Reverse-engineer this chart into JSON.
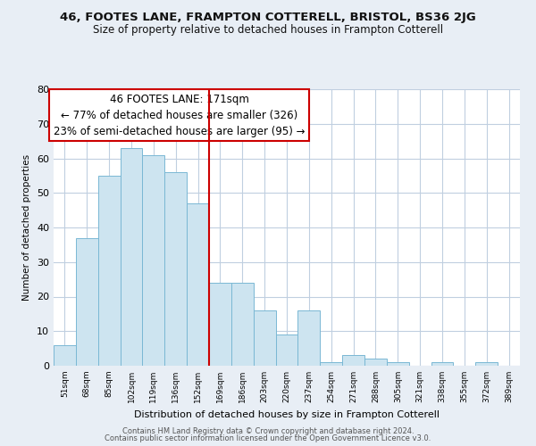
{
  "title": "46, FOOTES LANE, FRAMPTON COTTERELL, BRISTOL, BS36 2JG",
  "subtitle": "Size of property relative to detached houses in Frampton Cotterell",
  "xlabel": "Distribution of detached houses by size in Frampton Cotterell",
  "ylabel": "Number of detached properties",
  "bar_labels": [
    "51sqm",
    "68sqm",
    "85sqm",
    "102sqm",
    "119sqm",
    "136sqm",
    "152sqm",
    "169sqm",
    "186sqm",
    "203sqm",
    "220sqm",
    "237sqm",
    "254sqm",
    "271sqm",
    "288sqm",
    "305sqm",
    "321sqm",
    "338sqm",
    "355sqm",
    "372sqm",
    "389sqm"
  ],
  "bar_values": [
    6,
    37,
    55,
    63,
    61,
    56,
    47,
    24,
    24,
    16,
    9,
    16,
    1,
    3,
    2,
    1,
    0,
    1,
    0,
    1,
    0
  ],
  "bar_color": "#cde4f0",
  "bar_edge_color": "#7ab8d4",
  "vline_x_idx": 7,
  "vline_color": "#cc0000",
  "ylim": [
    0,
    80
  ],
  "yticks": [
    0,
    10,
    20,
    30,
    40,
    50,
    60,
    70,
    80
  ],
  "annotation_title": "46 FOOTES LANE: 171sqm",
  "annotation_line1": "← 77% of detached houses are smaller (326)",
  "annotation_line2": "23% of semi-detached houses are larger (95) →",
  "annotation_box_color": "#ffffff",
  "annotation_box_edge": "#cc0000",
  "footer1": "Contains HM Land Registry data © Crown copyright and database right 2024.",
  "footer2": "Contains public sector information licensed under the Open Government Licence v3.0.",
  "bg_color": "#e8eef5",
  "plot_bg_color": "#ffffff",
  "grid_color": "#c0cfe0"
}
